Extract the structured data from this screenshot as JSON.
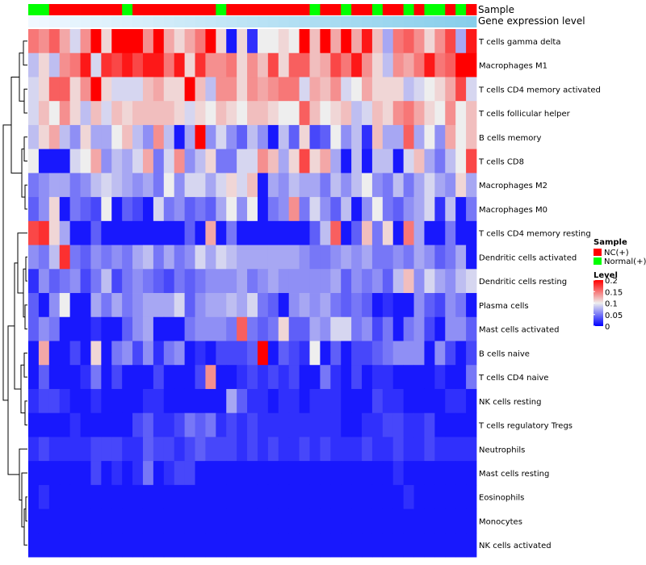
{
  "chart_data": {
    "type": "heatmap",
    "title": "",
    "annotation_tracks": [
      "Sample",
      "Gene expression level"
    ],
    "rows": [
      "T cells gamma delta",
      "Macrophages M1",
      "T cells CD4 memory activated",
      "T cells follicular helper",
      "B cells memory",
      "T cells CD8",
      "Macrophages M2",
      "Macrophages M0",
      "T cells CD4 memory resting",
      "Dendritic cells activated",
      "Dendritic cells resting",
      "Plasma cells",
      "Mast cells activated",
      "B cells naive",
      "T cells CD4 naive",
      "NK cells resting",
      "T cells regulatory  Tregs",
      "Neutrophils",
      "Mast cells resting",
      "Eosinophils",
      "Monocytes",
      "NK cells activated"
    ],
    "sample_groups": [
      "N",
      "N",
      "C",
      "C",
      "C",
      "C",
      "C",
      "C",
      "C",
      "N",
      "C",
      "C",
      "C",
      "C",
      "C",
      "C",
      "C",
      "C",
      "N",
      "C",
      "C",
      "C",
      "C",
      "C",
      "C",
      "C",
      "C",
      "N",
      "C",
      "C",
      "N",
      "C",
      "C",
      "N",
      "C",
      "C",
      "N",
      "C",
      "N",
      "N",
      "C",
      "N",
      "C"
    ],
    "legend": {
      "sample": {
        "title": "Sample",
        "entries": [
          {
            "key": "C",
            "label": "NC(+)",
            "color": "#ff0000"
          },
          {
            "key": "N",
            "label": "Normal(+)",
            "color": "#00ff00"
          }
        ]
      },
      "level": {
        "title": "Level",
        "ticks": [
          0.2,
          0.15,
          0.1,
          0.05,
          0
        ],
        "range": [
          0,
          0.2
        ],
        "colors": [
          "#0000ff",
          "#eeeeee",
          "#ff0000"
        ]
      }
    },
    "gene_expression_level_colors": [
      "#f0f8ff",
      "#87ceeb"
    ],
    "level_matrix": [
      [
        0.15,
        0.14,
        0.16,
        0.13,
        0.09,
        0.14,
        0.2,
        0.11,
        0.2,
        0.2,
        0.2,
        0.14,
        0.2,
        0.13,
        0.11,
        0.13,
        0.15,
        0.2,
        0.11,
        0.01,
        0.11,
        0.02,
        0.1,
        0.1,
        0.11,
        0.1,
        0.2,
        0.12,
        0.2,
        0.13,
        0.2,
        0.13,
        0.19,
        0.12,
        0.07,
        0.15,
        0.16,
        0.14,
        0.11,
        0.14,
        0.17,
        0.07,
        0.19
      ],
      [
        0.08,
        0.11,
        0.08,
        0.14,
        0.15,
        0.19,
        0.09,
        0.18,
        0.17,
        0.19,
        0.17,
        0.19,
        0.19,
        0.15,
        0.19,
        0.11,
        0.18,
        0.14,
        0.14,
        0.15,
        0.11,
        0.14,
        0.12,
        0.17,
        0.11,
        0.16,
        0.16,
        0.12,
        0.13,
        0.17,
        0.15,
        0.19,
        0.14,
        0.11,
        0.08,
        0.14,
        0.13,
        0.15,
        0.19,
        0.15,
        0.16,
        0.2,
        0.2
      ],
      [
        0.09,
        0.11,
        0.16,
        0.16,
        0.11,
        0.14,
        0.2,
        0.11,
        0.09,
        0.09,
        0.09,
        0.12,
        0.13,
        0.11,
        0.11,
        0.2,
        0.12,
        0.08,
        0.14,
        0.14,
        0.11,
        0.14,
        0.13,
        0.14,
        0.15,
        0.15,
        0.09,
        0.13,
        0.12,
        0.14,
        0.09,
        0.1,
        0.13,
        0.11,
        0.11,
        0.11,
        0.08,
        0.09,
        0.1,
        0.11,
        0.13,
        0.17,
        0.09
      ],
      [
        0.09,
        0.12,
        0.1,
        0.14,
        0.11,
        0.08,
        0.12,
        0.09,
        0.12,
        0.11,
        0.12,
        0.12,
        0.12,
        0.12,
        0.11,
        0.09,
        0.11,
        0.1,
        0.12,
        0.11,
        0.1,
        0.12,
        0.12,
        0.11,
        0.1,
        0.1,
        0.16,
        0.12,
        0.1,
        0.11,
        0.12,
        0.08,
        0.09,
        0.12,
        0.11,
        0.14,
        0.15,
        0.13,
        0.11,
        0.1,
        0.14,
        0.1,
        0.12
      ],
      [
        0.08,
        0.11,
        0.13,
        0.08,
        0.06,
        0.11,
        0.07,
        0.07,
        0.1,
        0.12,
        0.08,
        0.06,
        0.14,
        0.08,
        0.01,
        0.07,
        0.2,
        0.06,
        0.09,
        0.06,
        0.04,
        0.08,
        0.06,
        0.01,
        0.08,
        0.04,
        0.11,
        0.03,
        0.04,
        0.1,
        0.06,
        0.08,
        0.02,
        0.12,
        0.07,
        0.07,
        0.16,
        0.07,
        0.1,
        0.06,
        0.13,
        0.1,
        0.12
      ],
      [
        0.1,
        0.01,
        0.01,
        0.01,
        0.09,
        0.1,
        0.13,
        0.06,
        0.08,
        0.07,
        0.09,
        0.13,
        0.05,
        0.09,
        0.14,
        0.06,
        0.08,
        0.11,
        0.05,
        0.05,
        0.09,
        0.09,
        0.14,
        0.12,
        0.07,
        0.11,
        0.17,
        0.11,
        0.13,
        0.07,
        0.01,
        0.08,
        0.01,
        0.08,
        0.08,
        0.01,
        0.09,
        0.12,
        0.07,
        0.05,
        0.08,
        0.1,
        0.17
      ],
      [
        0.05,
        0.06,
        0.07,
        0.07,
        0.05,
        0.06,
        0.08,
        0.09,
        0.08,
        0.07,
        0.06,
        0.07,
        0.05,
        0.1,
        0.06,
        0.09,
        0.09,
        0.07,
        0.09,
        0.11,
        0.09,
        0.12,
        0.01,
        0.07,
        0.06,
        0.08,
        0.07,
        0.07,
        0.05,
        0.08,
        0.06,
        0.08,
        0.1,
        0.06,
        0.05,
        0.08,
        0.05,
        0.07,
        0.09,
        0.07,
        0.06,
        0.11,
        0.07
      ],
      [
        0.04,
        0.06,
        0.11,
        0.01,
        0.05,
        0.04,
        0.03,
        0.1,
        0.01,
        0.04,
        0.03,
        0.01,
        0.09,
        0.05,
        0.06,
        0.04,
        0.05,
        0.04,
        0.07,
        0.1,
        0.06,
        0.1,
        0.01,
        0.05,
        0.06,
        0.14,
        0.05,
        0.09,
        0.06,
        0.04,
        0.08,
        0.01,
        0.06,
        0.1,
        0.05,
        0.04,
        0.06,
        0.07,
        0.09,
        0.02,
        0.08,
        0.01,
        0.05
      ],
      [
        0.17,
        0.18,
        0.11,
        0.07,
        0.01,
        0.01,
        0.04,
        0.01,
        0.01,
        0.01,
        0.01,
        0.01,
        0.01,
        0.01,
        0.01,
        0.04,
        0.01,
        0.13,
        0.01,
        0.05,
        0.01,
        0.01,
        0.01,
        0.01,
        0.01,
        0.01,
        0.01,
        0.04,
        0.08,
        0.16,
        0.01,
        0.04,
        0.12,
        0.05,
        0.11,
        0.01,
        0.15,
        0.07,
        0.01,
        0.01,
        0.05,
        0.01,
        0.01
      ],
      [
        0.06,
        0.05,
        0.08,
        0.18,
        0.05,
        0.04,
        0.06,
        0.05,
        0.06,
        0.05,
        0.07,
        0.08,
        0.05,
        0.07,
        0.05,
        0.06,
        0.09,
        0.07,
        0.09,
        0.08,
        0.07,
        0.07,
        0.07,
        0.07,
        0.07,
        0.07,
        0.06,
        0.05,
        0.05,
        0.06,
        0.07,
        0.06,
        0.07,
        0.05,
        0.05,
        0.06,
        0.05,
        0.07,
        0.06,
        0.04,
        0.05,
        0.07,
        0.01
      ],
      [
        0.02,
        0.06,
        0.04,
        0.05,
        0.06,
        0.03,
        0.05,
        0.08,
        0.03,
        0.05,
        0.06,
        0.05,
        0.04,
        0.03,
        0.05,
        0.04,
        0.05,
        0.06,
        0.06,
        0.06,
        0.07,
        0.05,
        0.06,
        0.07,
        0.06,
        0.06,
        0.06,
        0.06,
        0.06,
        0.07,
        0.04,
        0.06,
        0.05,
        0.06,
        0.04,
        0.08,
        0.12,
        0.06,
        0.09,
        0.07,
        0.06,
        0.08,
        0.09
      ],
      [
        0.04,
        0.01,
        0.06,
        0.1,
        0.01,
        0.01,
        0.07,
        0.05,
        0.07,
        0.05,
        0.06,
        0.07,
        0.07,
        0.07,
        0.09,
        0.04,
        0.06,
        0.07,
        0.07,
        0.08,
        0.07,
        0.09,
        0.05,
        0.04,
        0.01,
        0.06,
        0.07,
        0.06,
        0.07,
        0.05,
        0.04,
        0.05,
        0.04,
        0.01,
        0.02,
        0.01,
        0.01,
        0.06,
        0.04,
        0.03,
        0.06,
        0.05,
        0.01
      ],
      [
        0.04,
        0.06,
        0.05,
        0.01,
        0.01,
        0.01,
        0.02,
        0.01,
        0.01,
        0.04,
        0.06,
        0.07,
        0.01,
        0.01,
        0.01,
        0.05,
        0.06,
        0.06,
        0.06,
        0.05,
        0.16,
        0.05,
        0.04,
        0.05,
        0.11,
        0.04,
        0.04,
        0.07,
        0.06,
        0.09,
        0.09,
        0.05,
        0.06,
        0.03,
        0.05,
        0.01,
        0.05,
        0.06,
        0.03,
        0.01,
        0.06,
        0.06,
        0.04
      ],
      [
        0.01,
        0.13,
        0.01,
        0.01,
        0.03,
        0.01,
        0.11,
        0.01,
        0.05,
        0.06,
        0.03,
        0.06,
        0.02,
        0.05,
        0.06,
        0.01,
        0.02,
        0.01,
        0.03,
        0.03,
        0.03,
        0.04,
        0.2,
        0.01,
        0.04,
        0.03,
        0.02,
        0.1,
        0.01,
        0.04,
        0.01,
        0.03,
        0.03,
        0.04,
        0.05,
        0.06,
        0.06,
        0.06,
        0.01,
        0.06,
        0.03,
        0.01,
        0.03
      ],
      [
        0.01,
        0.04,
        0.01,
        0.01,
        0.01,
        0.02,
        0.05,
        0.01,
        0.03,
        0.01,
        0.01,
        0.01,
        0.03,
        0.01,
        0.01,
        0.01,
        0.03,
        0.14,
        0.01,
        0.01,
        0.02,
        0.03,
        0.02,
        0.03,
        0.02,
        0.03,
        0.01,
        0.01,
        0.05,
        0.02,
        0.01,
        0.03,
        0.01,
        0.02,
        0.02,
        0.01,
        0.01,
        0.01,
        0.01,
        0.02,
        0.01,
        0.01,
        0.05
      ],
      [
        0.02,
        0.03,
        0.03,
        0.02,
        0.01,
        0.01,
        0.02,
        0.01,
        0.01,
        0.01,
        0.01,
        0.02,
        0.02,
        0.01,
        0.01,
        0.01,
        0.01,
        0.01,
        0.01,
        0.07,
        0.04,
        0.02,
        0.02,
        0.01,
        0.02,
        0.02,
        0.01,
        0.02,
        0.02,
        0.02,
        0.01,
        0.01,
        0.01,
        0.03,
        0.02,
        0.02,
        0.01,
        0.01,
        0.01,
        0.01,
        0.02,
        0.02,
        0.01
      ],
      [
        0.01,
        0.01,
        0.01,
        0.01,
        0.02,
        0.01,
        0.01,
        0.01,
        0.01,
        0.01,
        0.03,
        0.04,
        0.02,
        0.02,
        0.03,
        0.05,
        0.04,
        0.05,
        0.02,
        0.03,
        0.02,
        0.03,
        0.02,
        0.02,
        0.02,
        0.02,
        0.02,
        0.02,
        0.02,
        0.02,
        0.01,
        0.01,
        0.02,
        0.02,
        0.03,
        0.03,
        0.02,
        0.02,
        0.03,
        0.01,
        0.01,
        0.01,
        0.01
      ],
      [
        0.02,
        0.03,
        0.02,
        0.02,
        0.02,
        0.02,
        0.03,
        0.03,
        0.03,
        0.02,
        0.02,
        0.04,
        0.03,
        0.03,
        0.02,
        0.03,
        0.04,
        0.03,
        0.03,
        0.03,
        0.02,
        0.03,
        0.02,
        0.03,
        0.02,
        0.02,
        0.03,
        0.02,
        0.03,
        0.02,
        0.02,
        0.02,
        0.03,
        0.02,
        0.02,
        0.03,
        0.02,
        0.02,
        0.03,
        0.02,
        0.02,
        0.02,
        0.02
      ],
      [
        0.01,
        0.01,
        0.01,
        0.01,
        0.01,
        0.01,
        0.03,
        0.01,
        0.02,
        0.01,
        0.02,
        0.05,
        0.01,
        0.02,
        0.03,
        0.03,
        0.01,
        0.01,
        0.01,
        0.01,
        0.01,
        0.01,
        0.01,
        0.01,
        0.01,
        0.01,
        0.01,
        0.01,
        0.01,
        0.01,
        0.01,
        0.01,
        0.01,
        0.01,
        0.01,
        0.02,
        0.01,
        0.01,
        0.01,
        0.01,
        0.01,
        0.01,
        0.01
      ],
      [
        0.01,
        0.02,
        0.01,
        0.01,
        0.01,
        0.01,
        0.01,
        0.01,
        0.01,
        0.01,
        0.01,
        0.01,
        0.01,
        0.01,
        0.01,
        0.01,
        0.01,
        0.01,
        0.01,
        0.01,
        0.01,
        0.01,
        0.01,
        0.01,
        0.01,
        0.01,
        0.01,
        0.01,
        0.01,
        0.01,
        0.01,
        0.01,
        0.01,
        0.01,
        0.01,
        0.01,
        0.02,
        0.01,
        0.01,
        0.01,
        0.01,
        0.01,
        0.01
      ],
      [
        0.01,
        0.01,
        0.01,
        0.01,
        0.01,
        0.01,
        0.01,
        0.01,
        0.01,
        0.01,
        0.01,
        0.01,
        0.01,
        0.01,
        0.01,
        0.01,
        0.01,
        0.01,
        0.01,
        0.01,
        0.01,
        0.01,
        0.01,
        0.01,
        0.01,
        0.01,
        0.01,
        0.01,
        0.01,
        0.01,
        0.01,
        0.01,
        0.01,
        0.01,
        0.01,
        0.01,
        0.01,
        0.01,
        0.01,
        0.01,
        0.01,
        0.01,
        0.01
      ],
      [
        0.01,
        0.01,
        0.01,
        0.01,
        0.01,
        0.01,
        0.01,
        0.01,
        0.01,
        0.01,
        0.01,
        0.01,
        0.01,
        0.01,
        0.01,
        0.01,
        0.01,
        0.01,
        0.01,
        0.01,
        0.01,
        0.01,
        0.01,
        0.01,
        0.01,
        0.01,
        0.01,
        0.01,
        0.01,
        0.01,
        0.01,
        0.01,
        0.01,
        0.01,
        0.01,
        0.01,
        0.01,
        0.01,
        0.01,
        0.01,
        0.01,
        0.01,
        0.01
      ]
    ]
  }
}
